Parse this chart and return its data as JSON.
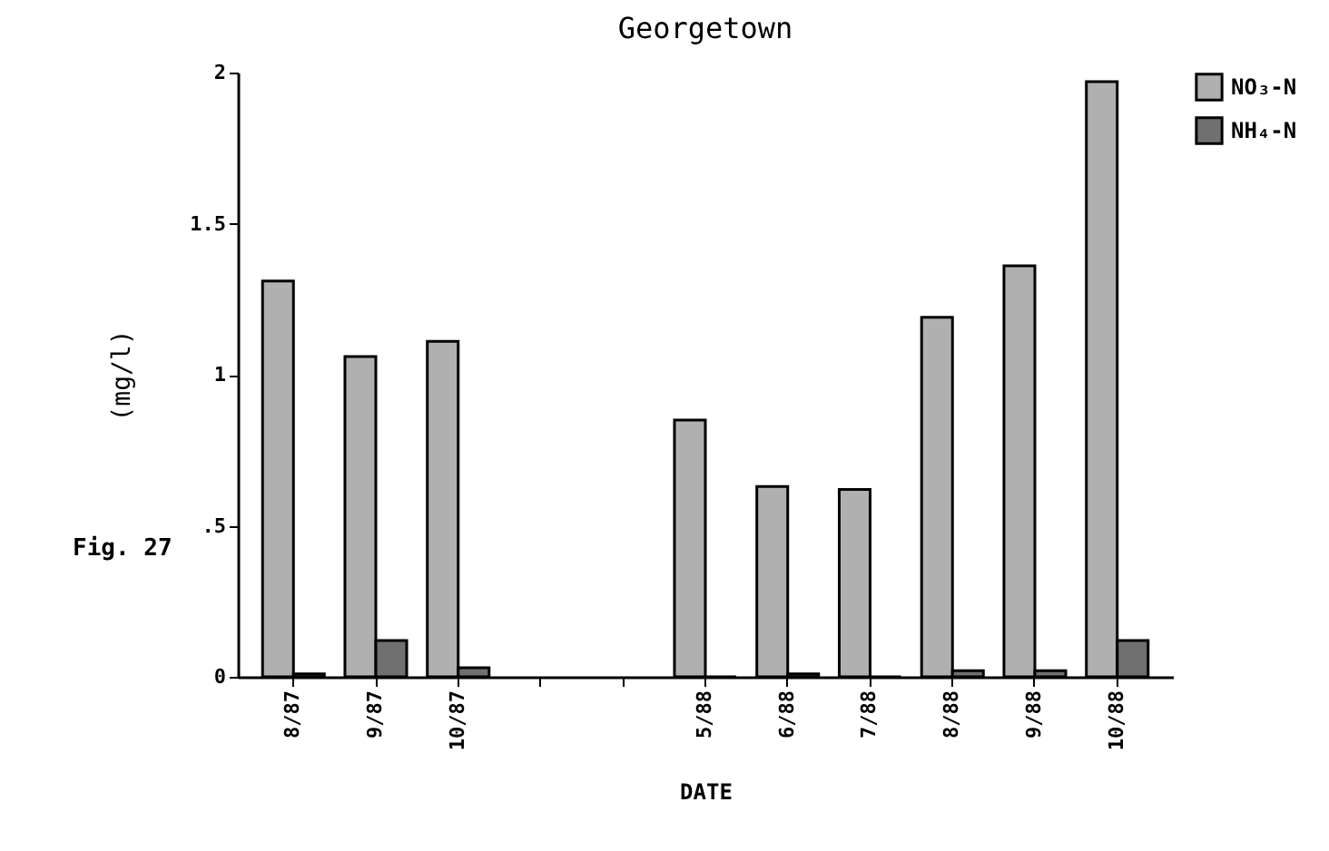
{
  "chart_data": {
    "type": "bar",
    "title": "Georgetown",
    "xlabel": "DATE",
    "ylabel": "(mg/l)",
    "categories": [
      "8/87",
      "9/87",
      "10/87",
      null,
      null,
      "5/88",
      "6/88",
      "7/88",
      "8/88",
      "9/88",
      "10/88"
    ],
    "series": [
      {
        "name": "NO₃-N",
        "color": "#b0b0b0",
        "values": [
          1.31,
          1.06,
          1.11,
          null,
          null,
          0.85,
          0.63,
          0.62,
          1.19,
          1.36,
          1.97
        ]
      },
      {
        "name": "NH₄-N",
        "color": "#707070",
        "values": [
          0.01,
          0.12,
          0.03,
          null,
          null,
          0,
          0.01,
          0,
          0.02,
          0.02,
          0.12
        ]
      }
    ],
    "ylim": [
      0,
      2
    ],
    "yticks": [
      0,
      {
        "value": 0.5,
        "label": ".5"
      },
      1,
      1.5,
      2
    ],
    "legend": "top right",
    "grid": false,
    "annotations": [
      "Fig. 27"
    ]
  }
}
